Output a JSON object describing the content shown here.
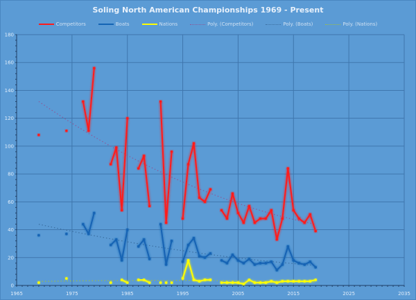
{
  "chart_data": {
    "type": "line",
    "title": "Soling North American Championships 1969 - Present",
    "xlim": [
      1965,
      2035
    ],
    "ylim": [
      0,
      180
    ],
    "x_ticks": [
      "1965",
      "1975",
      "1985",
      "1995",
      "2005",
      "2015",
      "2025",
      "2035"
    ],
    "y_ticks": [
      "0",
      "20",
      "40",
      "60",
      "80",
      "100",
      "120",
      "140",
      "160",
      "180"
    ],
    "grid": true,
    "legend_position": "top",
    "legend": [
      "Competitors",
      "Boats",
      "Nations",
      "Poly. (Competitors)",
      "Poly. (Boats)",
      "Poly. (Nations)"
    ],
    "series": [
      {
        "name": "Competitors",
        "color": "#ff1a1a",
        "trend_color": "#8a5a9a",
        "segments": [
          [
            [
              1969,
              108
            ]
          ],
          [
            [
              1974,
              111
            ]
          ],
          [
            [
              1977,
              132
            ],
            [
              1978,
              111
            ],
            [
              1979,
              156
            ]
          ],
          [
            [
              1982,
              87
            ],
            [
              1983,
              99
            ],
            [
              1984,
              54
            ],
            [
              1985,
              120
            ]
          ],
          [
            [
              1987,
              84
            ],
            [
              1988,
              93
            ],
            [
              1989,
              57
            ]
          ],
          [
            [
              1991,
              132
            ],
            [
              1992,
              45
            ],
            [
              1993,
              96
            ]
          ],
          [
            [
              1995,
              48
            ],
            [
              1996,
              87
            ],
            [
              1997,
              102
            ],
            [
              1998,
              63
            ],
            [
              1999,
              60
            ],
            [
              2000,
              69
            ]
          ],
          [
            [
              2002,
              54
            ],
            [
              2003,
              48
            ],
            [
              2004,
              66
            ],
            [
              2005,
              52
            ],
            [
              2006,
              45
            ],
            [
              2007,
              57
            ],
            [
              2008,
              45
            ],
            [
              2009,
              48
            ],
            [
              2010,
              48
            ],
            [
              2011,
              54
            ],
            [
              2012,
              33
            ],
            [
              2013,
              48
            ],
            [
              2014,
              84
            ],
            [
              2015,
              54
            ],
            [
              2016,
              48
            ],
            [
              2017,
              45
            ],
            [
              2018,
              51
            ],
            [
              2019,
              39
            ]
          ]
        ]
      },
      {
        "name": "Boats",
        "color": "#1464b4",
        "trend_color": "#3a6ea0",
        "segments": [
          [
            [
              1969,
              36
            ]
          ],
          [
            [
              1974,
              37
            ]
          ],
          [
            [
              1977,
              44
            ],
            [
              1978,
              37
            ],
            [
              1979,
              52
            ]
          ],
          [
            [
              1982,
              29
            ],
            [
              1983,
              33
            ],
            [
              1984,
              18
            ],
            [
              1985,
              40
            ]
          ],
          [
            [
              1987,
              28
            ],
            [
              1988,
              33
            ],
            [
              1989,
              19
            ]
          ],
          [
            [
              1991,
              44
            ],
            [
              1992,
              15
            ],
            [
              1993,
              32
            ]
          ],
          [
            [
              1995,
              17
            ],
            [
              1996,
              29
            ],
            [
              1997,
              34
            ],
            [
              1998,
              21
            ],
            [
              1999,
              20
            ],
            [
              2000,
              23
            ]
          ],
          [
            [
              2002,
              18
            ],
            [
              2003,
              16
            ],
            [
              2004,
              22
            ],
            [
              2005,
              18
            ],
            [
              2006,
              16
            ],
            [
              2007,
              19
            ],
            [
              2008,
              15
            ],
            [
              2009,
              16
            ],
            [
              2010,
              16
            ],
            [
              2011,
              17
            ],
            [
              2012,
              11
            ],
            [
              2013,
              15
            ],
            [
              2014,
              28
            ],
            [
              2015,
              18
            ],
            [
              2016,
              16
            ],
            [
              2017,
              15
            ],
            [
              2018,
              17
            ],
            [
              2019,
              13
            ]
          ]
        ]
      },
      {
        "name": "Nations",
        "color": "#ffff00",
        "trend_color": "#9fbf40",
        "segments": [
          [
            [
              1969,
              2
            ]
          ],
          [
            [
              1974,
              5
            ]
          ],
          [
            [
              1982,
              2
            ]
          ],
          [
            [
              1984,
              4
            ],
            [
              1985,
              2
            ]
          ],
          [
            [
              1987,
              4
            ],
            [
              1988,
              4
            ],
            [
              1989,
              2
            ]
          ],
          [
            [
              1991,
              2
            ],
            [
              1992,
              2
            ],
            [
              1993,
              2
            ]
          ],
          [
            [
              1995,
              5
            ],
            [
              1996,
              18
            ],
            [
              1997,
              4
            ],
            [
              1998,
              3
            ],
            [
              1999,
              4
            ],
            [
              2000,
              4
            ]
          ],
          [
            [
              2002,
              2
            ],
            [
              2003,
              2
            ],
            [
              2004,
              2
            ],
            [
              2005,
              2
            ],
            [
              2006,
              1
            ],
            [
              2007,
              4
            ],
            [
              2008,
              2
            ],
            [
              2009,
              2
            ],
            [
              2010,
              2
            ],
            [
              2011,
              3
            ],
            [
              2012,
              2
            ],
            [
              2013,
              3
            ],
            [
              2014,
              3
            ],
            [
              2015,
              3
            ],
            [
              2016,
              3
            ],
            [
              2017,
              3
            ],
            [
              2018,
              3
            ],
            [
              2019,
              4
            ]
          ]
        ]
      }
    ]
  }
}
